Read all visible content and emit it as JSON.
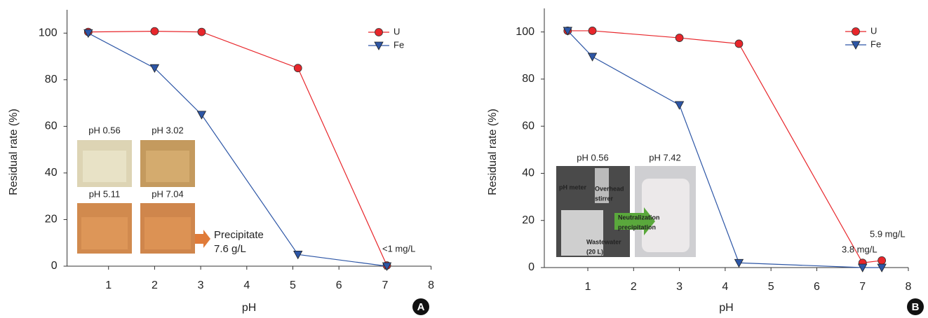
{
  "chart_data": [
    {
      "type": "line",
      "panel_label": "A",
      "xlabel": "pH",
      "ylabel": "Residual rate (%)",
      "x": [
        0.56,
        2.0,
        3.02,
        5.11,
        7.04
      ],
      "series": [
        {
          "name": "U",
          "color": "#e8262b",
          "marker": "circle",
          "values": [
            100.5,
            100.8,
            100.5,
            85,
            0.3
          ]
        },
        {
          "name": "Fe",
          "color": "#2d56a6",
          "marker": "triangle-down",
          "values": [
            100,
            85,
            65,
            5,
            0
          ]
        }
      ],
      "xlim": [
        0.1,
        8
      ],
      "ylim": [
        0,
        110
      ],
      "xticks": [
        1,
        2,
        3,
        4,
        5,
        6,
        7,
        8
      ],
      "yticks": [
        0,
        20,
        40,
        60,
        80,
        100
      ],
      "legend": "upper right",
      "annotations": [
        {
          "text": "<1 mg/L",
          "color": "#e8262b"
        }
      ],
      "photo_labels": [
        "pH 0.56",
        "pH 3.02",
        "pH 5.11",
        "pH 7.04"
      ],
      "photo_notes": [
        [
          "Precipitate",
          "7.6 g/L"
        ]
      ]
    },
    {
      "type": "line",
      "panel_label": "B",
      "xlabel": "pH",
      "ylabel": "Residual rate (%)",
      "x": [
        0.56,
        1.1,
        3.0,
        4.3,
        7.0,
        7.42
      ],
      "series": [
        {
          "name": "U",
          "color": "#e8262b",
          "marker": "circle",
          "values": [
            100.5,
            100.5,
            97.5,
            95,
            2,
            3
          ]
        },
        {
          "name": "Fe",
          "color": "#2d56a6",
          "marker": "triangle-down",
          "values": [
            100.5,
            89.5,
            69,
            2,
            0,
            0
          ]
        }
      ],
      "xlim": [
        0.05,
        8
      ],
      "ylim": [
        0,
        110
      ],
      "xticks": [
        1,
        2,
        3,
        4,
        5,
        6,
        7,
        8
      ],
      "yticks": [
        0,
        20,
        40,
        60,
        80,
        100
      ],
      "legend": "upper right",
      "annotations": [
        {
          "text": "5.9 mg/L",
          "color": "#e8262b"
        },
        {
          "text": "3.8 mg/L",
          "color": "#e8262b"
        }
      ],
      "photo_labels": [
        "pH 0.56",
        "pH 7.42"
      ],
      "photo_notes": [
        [
          "pH meter"
        ],
        [
          "Overhead",
          "stirrer"
        ],
        [
          "Neutralization",
          "precipitation"
        ],
        [
          "Wastewater",
          "(20 L)"
        ]
      ]
    }
  ]
}
